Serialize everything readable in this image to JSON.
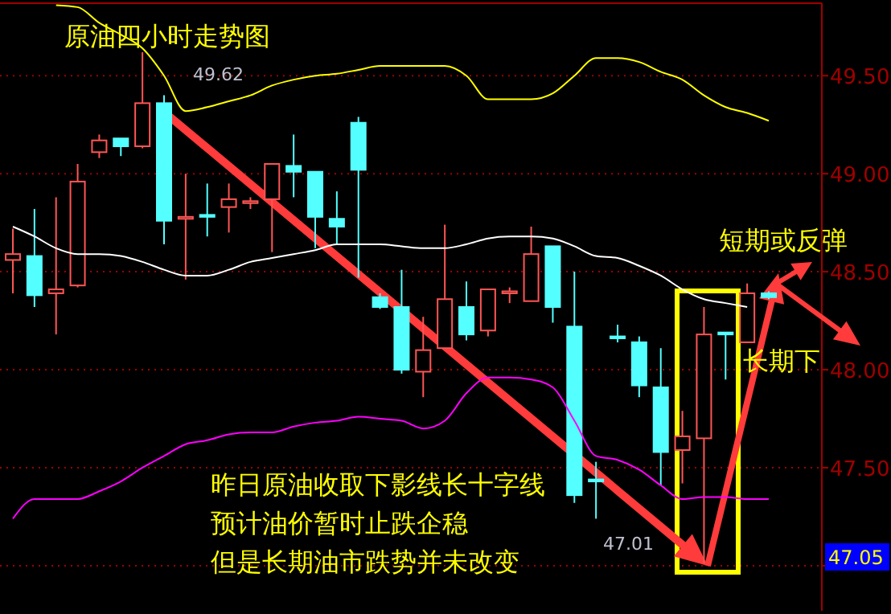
{
  "chart_data": {
    "type": "candlestick",
    "title": "原油四小时走势图",
    "categories": [
      null,
      null,
      null,
      null,
      null,
      null,
      null,
      null,
      null,
      null,
      null,
      null,
      null,
      null,
      null,
      null,
      null,
      null,
      null,
      null,
      null,
      null,
      null,
      null,
      null,
      null,
      null,
      null,
      null,
      null,
      null,
      null,
      null,
      null,
      null,
      null
    ],
    "ohlc": [
      [
        48.56,
        48.72,
        48.39,
        48.59
      ],
      [
        48.58,
        48.82,
        48.32,
        48.38
      ],
      [
        48.39,
        48.88,
        48.18,
        48.41
      ],
      [
        48.43,
        49.05,
        48.42,
        48.96
      ],
      [
        49.11,
        49.2,
        49.08,
        49.17
      ],
      [
        49.18,
        49.18,
        49.09,
        49.14
      ],
      [
        49.14,
        49.62,
        49.13,
        49.36
      ],
      [
        49.36,
        49.4,
        48.64,
        48.76
      ],
      [
        48.77,
        49.0,
        48.46,
        48.78
      ],
      [
        48.79,
        48.95,
        48.68,
        48.78
      ],
      [
        48.83,
        48.95,
        48.7,
        48.87
      ],
      [
        48.85,
        48.88,
        48.82,
        48.86
      ],
      [
        48.87,
        49.05,
        48.6,
        49.05
      ],
      [
        49.04,
        49.2,
        48.88,
        49.01
      ],
      [
        49.01,
        49.01,
        48.62,
        48.78
      ],
      [
        48.77,
        48.91,
        48.64,
        48.73
      ],
      [
        49.26,
        49.29,
        48.47,
        49.02
      ],
      [
        48.37,
        48.39,
        48.31,
        48.32
      ],
      [
        48.32,
        48.51,
        47.98,
        48.0
      ],
      [
        47.99,
        48.27,
        47.86,
        48.1
      ],
      [
        48.11,
        48.74,
        48.11,
        48.36
      ],
      [
        48.32,
        48.45,
        48.15,
        48.18
      ],
      [
        48.2,
        48.41,
        48.17,
        48.41
      ],
      [
        48.39,
        48.42,
        48.34,
        48.4
      ],
      [
        48.35,
        48.73,
        48.35,
        48.59
      ],
      [
        48.63,
        48.63,
        48.24,
        48.32
      ],
      [
        48.22,
        48.5,
        47.32,
        47.36
      ],
      [
        47.44,
        47.53,
        47.24,
        47.43
      ],
      [
        48.17,
        48.23,
        48.14,
        48.16
      ],
      [
        48.14,
        48.17,
        47.86,
        47.92
      ],
      [
        47.91,
        48.11,
        47.41,
        47.58
      ],
      [
        47.59,
        47.79,
        47.42,
        47.66
      ],
      [
        47.65,
        48.32,
        47.01,
        48.18
      ],
      [
        48.19,
        48.19,
        47.95,
        48.18
      ],
      [
        48.14,
        48.44,
        48.14,
        48.39
      ],
      [
        48.39,
        48.4,
        48.36,
        48.37
      ]
    ],
    "colors": [
      "#ff5555",
      "#54ffff",
      "#ff5555",
      "#ff5555",
      "#ff5555",
      "#54ffff",
      "#ff5555",
      "#54ffff",
      "#ff5555",
      "#54ffff",
      "#ff5555",
      "#ff5555",
      "#ff5555",
      "#54ffff",
      "#54ffff",
      "#54ffff",
      "#54ffff",
      "#54ffff",
      "#54ffff",
      "#ff5555",
      "#ff5555",
      "#54ffff",
      "#ff5555",
      "#ff5555",
      "#ff5555",
      "#54ffff",
      "#54ffff",
      "#54ffff",
      "#54ffff",
      "#54ffff",
      "#54ffff",
      "#ff5555",
      "#ff5555",
      "#54ffff",
      "#ff5555",
      "#54ffff"
    ],
    "series": [
      {
        "type": "line",
        "color": "#ffff00",
        "values": [
          null,
          null,
          49.86,
          49.85,
          49.77,
          49.71,
          49.64,
          49.5,
          49.32,
          49.34,
          49.37,
          49.4,
          49.45,
          49.48,
          49.5,
          49.51,
          49.53,
          49.55,
          49.55,
          49.55,
          49.55,
          49.5,
          49.38,
          49.38,
          49.38,
          49.41,
          49.5,
          49.59,
          49.59,
          49.57,
          49.52,
          49.48,
          49.4,
          49.34,
          49.31,
          49.27
        ]
      },
      {
        "type": "line",
        "color": "#ffffff",
        "values": [
          48.73,
          48.68,
          48.62,
          48.59,
          48.59,
          48.58,
          48.55,
          48.51,
          48.48,
          48.48,
          48.51,
          48.55,
          48.57,
          48.59,
          48.61,
          48.64,
          48.64,
          48.64,
          48.63,
          48.62,
          48.62,
          48.64,
          48.67,
          48.68,
          48.68,
          48.67,
          48.63,
          48.58,
          48.57,
          48.53,
          48.48,
          48.41,
          48.36,
          48.34,
          48.32,
          null
        ]
      },
      {
        "type": "line",
        "color": "#ff00ff",
        "values": [
          47.24,
          47.34,
          47.34,
          47.34,
          47.38,
          47.43,
          47.5,
          47.56,
          47.62,
          47.64,
          47.67,
          47.68,
          47.68,
          47.71,
          47.73,
          47.74,
          47.76,
          47.75,
          47.74,
          47.7,
          47.74,
          47.88,
          47.96,
          47.96,
          47.95,
          47.91,
          47.74,
          47.56,
          47.54,
          47.49,
          47.41,
          47.34,
          47.35,
          47.35,
          47.34,
          47.34
        ]
      }
    ],
    "ylim": [
      46.77,
      49.87
    ],
    "yticks": [
      {
        "value": 47,
        "label": null
      },
      {
        "value": 47.5,
        "label": "47.50"
      },
      {
        "value": 48,
        "label": "48.00"
      },
      {
        "value": 48.5,
        "label": "48.50"
      },
      {
        "value": 49,
        "label": "49.00"
      },
      {
        "value": 49.5,
        "label": "49.50"
      }
    ],
    "grid": "y",
    "tick_labels": "y",
    "annotations": [
      "昨日原油收取下影线长十字线",
      "预计油价暂时止跌企稳",
      "但是长期油市跌势并未改变",
      "短期或反弹",
      "长期下",
      "49.62",
      "47.01",
      "47.05"
    ]
  }
}
